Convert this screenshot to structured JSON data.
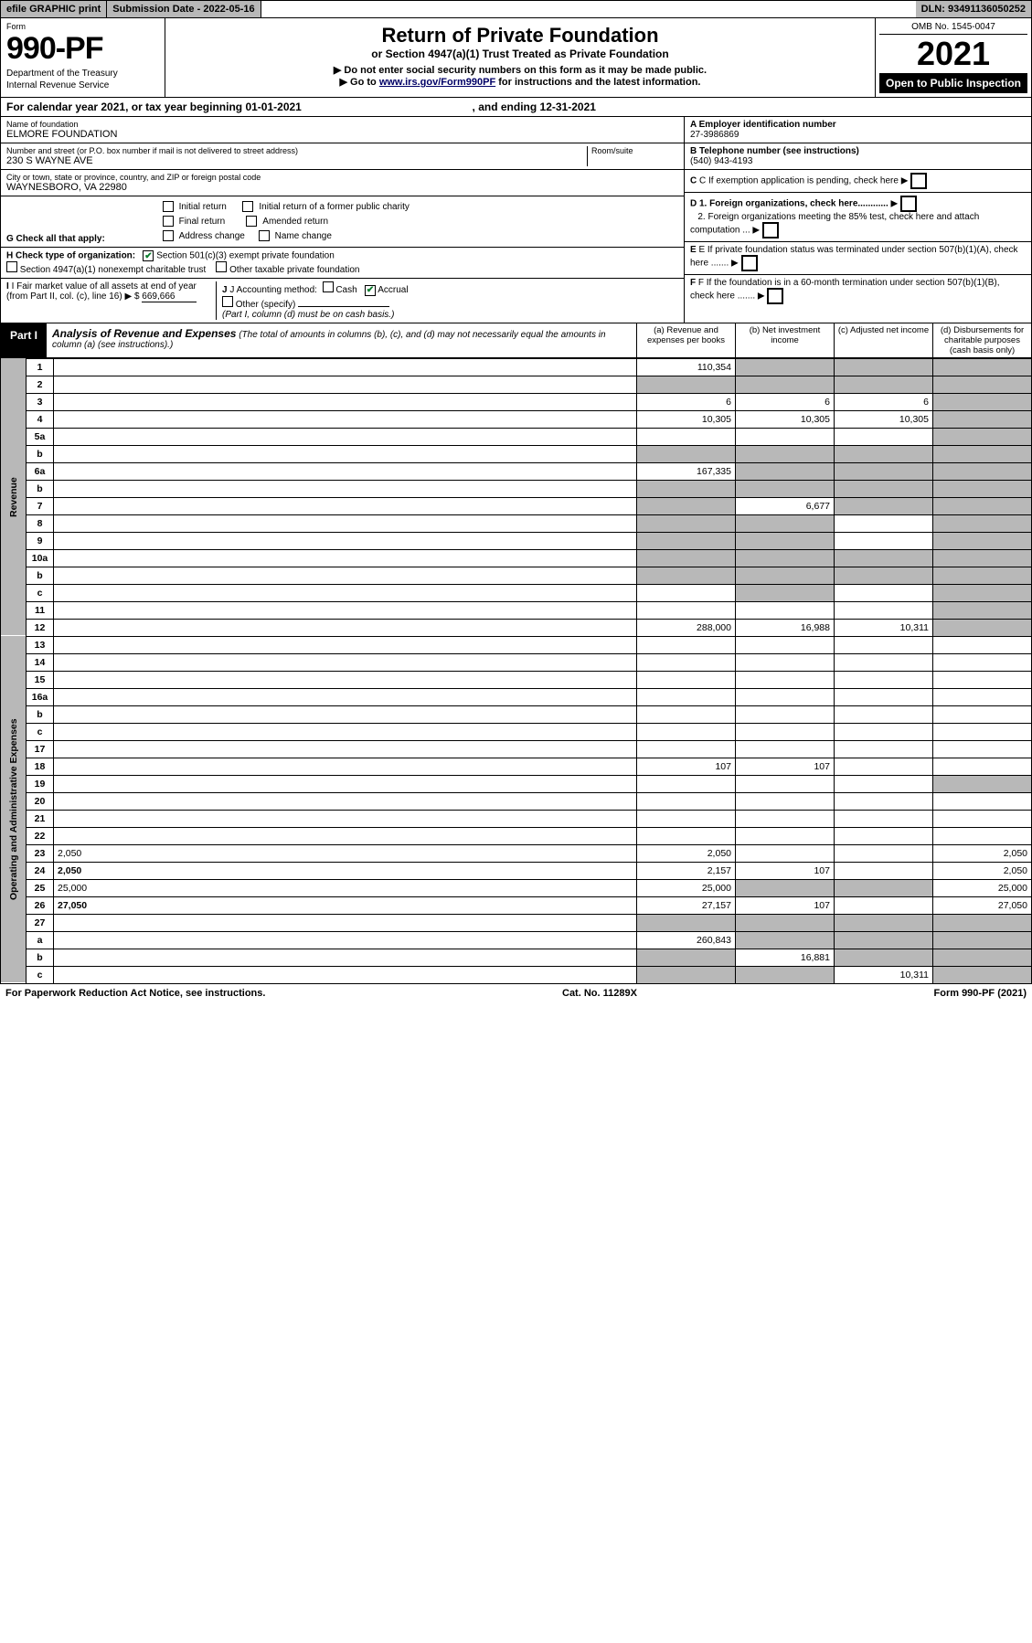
{
  "top": {
    "efile": "efile GRAPHIC print",
    "sub_date_label": "Submission Date - ",
    "sub_date": "2022-05-16",
    "dln_label": "DLN: ",
    "dln": "93491136050252"
  },
  "header": {
    "form_label": "Form",
    "form_no": "990-PF",
    "dept1": "Department of the Treasury",
    "dept2": "Internal Revenue Service",
    "title": "Return of Private Foundation",
    "subtitle": "or Section 4947(a)(1) Trust Treated as Private Foundation",
    "note1": "▶ Do not enter social security numbers on this form as it may be made public.",
    "note2_prefix": "▶ Go to ",
    "note2_link": "www.irs.gov/Form990PF",
    "note2_suffix": " for instructions and the latest information.",
    "omb": "OMB No. 1545-0047",
    "year": "2021",
    "inspect": "Open to Public Inspection"
  },
  "cal_year": {
    "prefix": "For calendar year 2021, or tax year beginning ",
    "begin": "01-01-2021",
    "mid": " , and ending ",
    "end": "12-31-2021"
  },
  "info": {
    "name_label": "Name of foundation",
    "name": "ELMORE FOUNDATION",
    "addr_label": "Number and street (or P.O. box number if mail is not delivered to street address)",
    "addr": "230 S WAYNE AVE",
    "room_label": "Room/suite",
    "city_label": "City or town, state or province, country, and ZIP or foreign postal code",
    "city": "WAYNESBORO, VA  22980",
    "ein_label": "A Employer identification number",
    "ein": "27-3986869",
    "phone_label": "B Telephone number (see instructions)",
    "phone": "(540) 943-4193",
    "c_label": "C If exemption application is pending, check here",
    "d1": "D 1. Foreign organizations, check here............",
    "d2": "2. Foreign organizations meeting the 85% test, check here and attach computation ...",
    "e_label": "E If private foundation status was terminated under section 507(b)(1)(A), check here .......",
    "f_label": "F If the foundation is in a 60-month termination under section 507(b)(1)(B), check here .......",
    "g_label": "G Check all that apply:",
    "g_opts": [
      "Initial return",
      "Initial return of a former public charity",
      "Final return",
      "Amended return",
      "Address change",
      "Name change"
    ],
    "h_label": "H Check type of organization:",
    "h1": "Section 501(c)(3) exempt private foundation",
    "h2": "Section 4947(a)(1) nonexempt charitable trust",
    "h3": "Other taxable private foundation",
    "i_label": "I Fair market value of all assets at end of year (from Part II, col. (c), line 16)",
    "i_val": "669,666",
    "j_label": "J Accounting method:",
    "j_cash": "Cash",
    "j_accrual": "Accrual",
    "j_other": "Other (specify)",
    "j_note": "(Part I, column (d) must be on cash basis.)"
  },
  "part1": {
    "tag": "Part I",
    "title": "Analysis of Revenue and Expenses",
    "note": "(The total of amounts in columns (b), (c), and (d) may not necessarily equal the amounts in column (a) (see instructions).)",
    "col_a": "(a) Revenue and expenses per books",
    "col_b": "(b) Net investment income",
    "col_c": "(c) Adjusted net income",
    "col_d": "(d) Disbursements for charitable purposes (cash basis only)",
    "side_rev": "Revenue",
    "side_exp": "Operating and Administrative Expenses"
  },
  "rows": {
    "r1": {
      "n": "1",
      "d": "",
      "a": "110,354",
      "b": "",
      "c": "",
      "sa": false,
      "sb": true,
      "sc": true,
      "sd": true
    },
    "r2": {
      "n": "2",
      "d": "",
      "a": "",
      "b": "",
      "c": "",
      "sa": true,
      "sb": true,
      "sc": true,
      "sd": true
    },
    "r3": {
      "n": "3",
      "d": "",
      "a": "6",
      "b": "6",
      "c": "6",
      "sa": false,
      "sb": false,
      "sc": false,
      "sd": true
    },
    "r4": {
      "n": "4",
      "d": "",
      "a": "10,305",
      "b": "10,305",
      "c": "10,305",
      "sa": false,
      "sb": false,
      "sc": false,
      "sd": true
    },
    "r5a": {
      "n": "5a",
      "d": "",
      "a": "",
      "b": "",
      "c": "",
      "sa": false,
      "sb": false,
      "sc": false,
      "sd": true
    },
    "r5b": {
      "n": "b",
      "d": "",
      "a": "",
      "b": "",
      "c": "",
      "sa": true,
      "sb": true,
      "sc": true,
      "sd": true
    },
    "r6a": {
      "n": "6a",
      "d": "",
      "a": "167,335",
      "b": "",
      "c": "",
      "sa": false,
      "sb": true,
      "sc": true,
      "sd": true
    },
    "r6b": {
      "n": "b",
      "d": "",
      "a": "",
      "b": "",
      "c": "",
      "sa": true,
      "sb": true,
      "sc": true,
      "sd": true
    },
    "r7": {
      "n": "7",
      "d": "",
      "a": "",
      "b": "6,677",
      "c": "",
      "sa": true,
      "sb": false,
      "sc": true,
      "sd": true
    },
    "r8": {
      "n": "8",
      "d": "",
      "a": "",
      "b": "",
      "c": "",
      "sa": true,
      "sb": true,
      "sc": false,
      "sd": true
    },
    "r9": {
      "n": "9",
      "d": "",
      "a": "",
      "b": "",
      "c": "",
      "sa": true,
      "sb": true,
      "sc": false,
      "sd": true
    },
    "r10a": {
      "n": "10a",
      "d": "",
      "a": "",
      "b": "",
      "c": "",
      "sa": true,
      "sb": true,
      "sc": true,
      "sd": true
    },
    "r10b": {
      "n": "b",
      "d": "",
      "a": "",
      "b": "",
      "c": "",
      "sa": true,
      "sb": true,
      "sc": true,
      "sd": true
    },
    "r10c": {
      "n": "c",
      "d": "",
      "a": "",
      "b": "",
      "c": "",
      "sa": false,
      "sb": true,
      "sc": false,
      "sd": true
    },
    "r11": {
      "n": "11",
      "d": "",
      "a": "",
      "b": "",
      "c": "",
      "sa": false,
      "sb": false,
      "sc": false,
      "sd": true
    },
    "r12": {
      "n": "12",
      "d": "",
      "a": "288,000",
      "b": "16,988",
      "c": "10,311",
      "sa": false,
      "sb": false,
      "sc": false,
      "sd": true,
      "bold": true
    },
    "r13": {
      "n": "13",
      "d": "",
      "a": "",
      "b": "",
      "c": "",
      "sa": false,
      "sb": false,
      "sc": false,
      "sd": false
    },
    "r14": {
      "n": "14",
      "d": "",
      "a": "",
      "b": "",
      "c": "",
      "sa": false,
      "sb": false,
      "sc": false,
      "sd": false
    },
    "r15": {
      "n": "15",
      "d": "",
      "a": "",
      "b": "",
      "c": "",
      "sa": false,
      "sb": false,
      "sc": false,
      "sd": false
    },
    "r16a": {
      "n": "16a",
      "d": "",
      "a": "",
      "b": "",
      "c": "",
      "sa": false,
      "sb": false,
      "sc": false,
      "sd": false
    },
    "r16b": {
      "n": "b",
      "d": "",
      "a": "",
      "b": "",
      "c": "",
      "sa": false,
      "sb": false,
      "sc": false,
      "sd": false
    },
    "r16c": {
      "n": "c",
      "d": "",
      "a": "",
      "b": "",
      "c": "",
      "sa": false,
      "sb": false,
      "sc": false,
      "sd": false
    },
    "r17": {
      "n": "17",
      "d": "",
      "a": "",
      "b": "",
      "c": "",
      "sa": false,
      "sb": false,
      "sc": false,
      "sd": false
    },
    "r18": {
      "n": "18",
      "d": "",
      "a": "107",
      "b": "107",
      "c": "",
      "sa": false,
      "sb": false,
      "sc": false,
      "sd": false
    },
    "r19": {
      "n": "19",
      "d": "",
      "a": "",
      "b": "",
      "c": "",
      "sa": false,
      "sb": false,
      "sc": false,
      "sd": true
    },
    "r20": {
      "n": "20",
      "d": "",
      "a": "",
      "b": "",
      "c": "",
      "sa": false,
      "sb": false,
      "sc": false,
      "sd": false
    },
    "r21": {
      "n": "21",
      "d": "",
      "a": "",
      "b": "",
      "c": "",
      "sa": false,
      "sb": false,
      "sc": false,
      "sd": false
    },
    "r22": {
      "n": "22",
      "d": "",
      "a": "",
      "b": "",
      "c": "",
      "sa": false,
      "sb": false,
      "sc": false,
      "sd": false
    },
    "r23": {
      "n": "23",
      "d": "2,050",
      "a": "2,050",
      "b": "",
      "c": "",
      "sa": false,
      "sb": false,
      "sc": false,
      "sd": false
    },
    "r24": {
      "n": "24",
      "d": "2,050",
      "a": "2,157",
      "b": "107",
      "c": "",
      "sa": false,
      "sb": false,
      "sc": false,
      "sd": false,
      "bold": true
    },
    "r25": {
      "n": "25",
      "d": "25,000",
      "a": "25,000",
      "b": "",
      "c": "",
      "sa": false,
      "sb": true,
      "sc": true,
      "sd": false
    },
    "r26": {
      "n": "26",
      "d": "27,050",
      "a": "27,157",
      "b": "107",
      "c": "",
      "sa": false,
      "sb": false,
      "sc": false,
      "sd": false,
      "bold": true
    },
    "r27": {
      "n": "27",
      "d": "",
      "a": "",
      "b": "",
      "c": "",
      "sa": true,
      "sb": true,
      "sc": true,
      "sd": true
    },
    "r27a": {
      "n": "a",
      "d": "",
      "a": "260,843",
      "b": "",
      "c": "",
      "sa": false,
      "sb": true,
      "sc": true,
      "sd": true,
      "bold": true
    },
    "r27b": {
      "n": "b",
      "d": "",
      "a": "",
      "b": "16,881",
      "c": "",
      "sa": true,
      "sb": false,
      "sc": true,
      "sd": true,
      "bold": true
    },
    "r27c": {
      "n": "c",
      "d": "",
      "a": "",
      "b": "",
      "c": "10,311",
      "sa": true,
      "sb": true,
      "sc": false,
      "sd": true,
      "bold": true
    }
  },
  "footer": {
    "left": "For Paperwork Reduction Act Notice, see instructions.",
    "mid": "Cat. No. 11289X",
    "right": "Form 990-PF (2021)"
  },
  "colors": {
    "shade": "#b8b8b8",
    "black": "#000000",
    "link": "#000088",
    "check": "#0a7d2d"
  }
}
